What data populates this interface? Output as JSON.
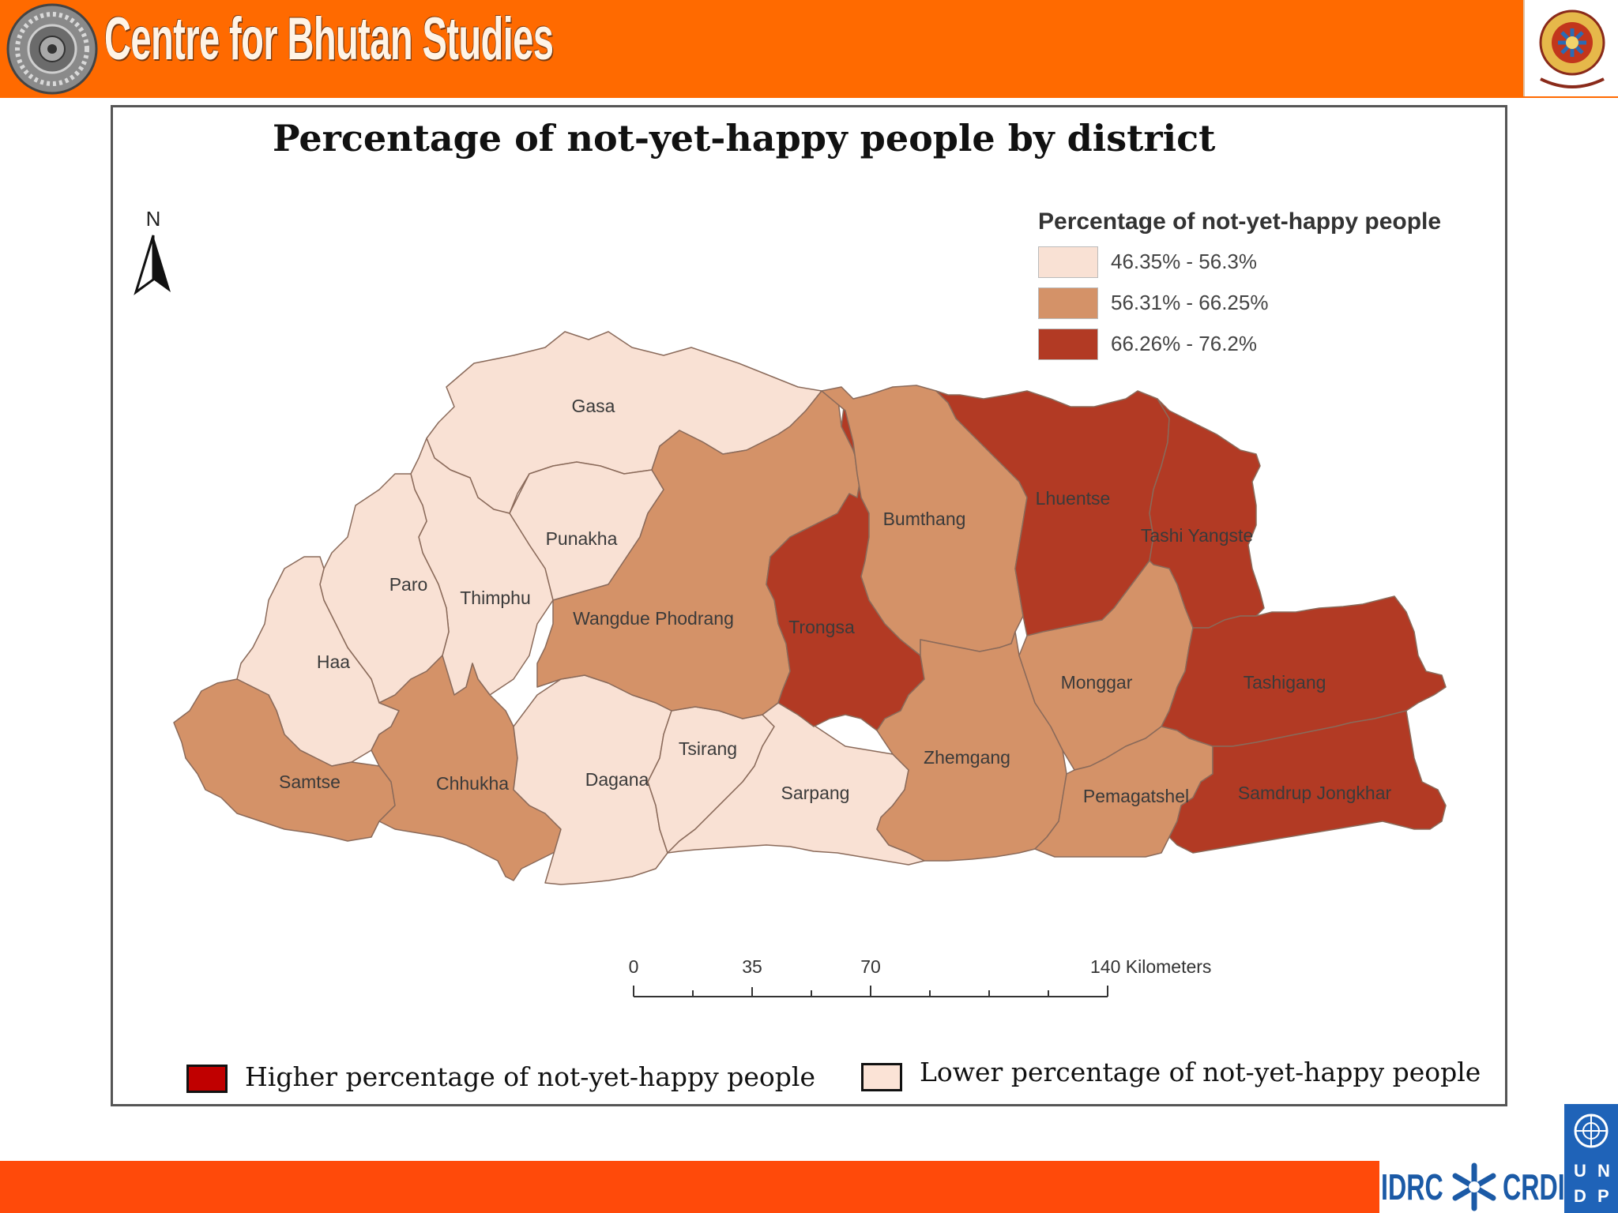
{
  "header": {
    "org_name": "Centre for Bhutan Studies",
    "icons": [
      "dharma-wheel-icon",
      "bhutan-emblem-icon"
    ]
  },
  "map": {
    "title": "Percentage of not-yet-happy people by district",
    "north_label": "N",
    "legend": {
      "title": "Percentage of not-yet-happy people",
      "classes": [
        {
          "label": "46.35% - 56.3%",
          "color": "#f9e1d4"
        },
        {
          "label": "56.31% - 66.25%",
          "color": "#d49268"
        },
        {
          "label": "66.26% - 76.2%",
          "color": "#b23a24"
        }
      ]
    },
    "districts": {
      "gasa": {
        "name": "Gasa",
        "class": 0
      },
      "punakha": {
        "name": "Punakha",
        "class": 0
      },
      "paro": {
        "name": "Paro",
        "class": 0
      },
      "thimphu": {
        "name": "Thimphu",
        "class": 0
      },
      "haa": {
        "name": "Haa",
        "class": 0
      },
      "samtse": {
        "name": "Samtse",
        "class": 1
      },
      "chhukha": {
        "name": "Chhukha",
        "class": 1
      },
      "dagana": {
        "name": "Dagana",
        "class": 0
      },
      "tsirang": {
        "name": "Tsirang",
        "class": 0
      },
      "sarpang": {
        "name": "Sarpang",
        "class": 0
      },
      "wangdue": {
        "name": "Wangdue Phodrang",
        "class": 1
      },
      "trongsa": {
        "name": "Trongsa",
        "class": 2
      },
      "bumthang": {
        "name": "Bumthang",
        "class": 1
      },
      "zhemgang": {
        "name": "Zhemgang",
        "class": 1
      },
      "lhuentse": {
        "name": "Lhuentse",
        "class": 2
      },
      "tashiyangtse": {
        "name": "Tashi Yangste",
        "class": 2
      },
      "monggar": {
        "name": "Monggar",
        "class": 1
      },
      "tashigang": {
        "name": "Tashigang",
        "class": 2
      },
      "pemagatshel": {
        "name": "Pemagatshel",
        "class": 1
      },
      "samdrup": {
        "name": "Samdrup Jongkhar",
        "class": 2
      }
    },
    "scale_bar": {
      "ticks": [
        "0",
        "35",
        "70",
        "140 Kilometers"
      ]
    }
  },
  "bottom_key": {
    "higher_label": "Higher percentage of not-yet-happy people",
    "higher_color": "#c00000",
    "lower_label": "Lower percentage of not-yet-happy people",
    "lower_color": "#fbe3d6"
  },
  "footer": {
    "idrc": "IDRC",
    "crdi": "CRDI",
    "undp_letters": [
      "U",
      "N",
      "D",
      "P"
    ],
    "bar_color": "#ff4a0a"
  }
}
